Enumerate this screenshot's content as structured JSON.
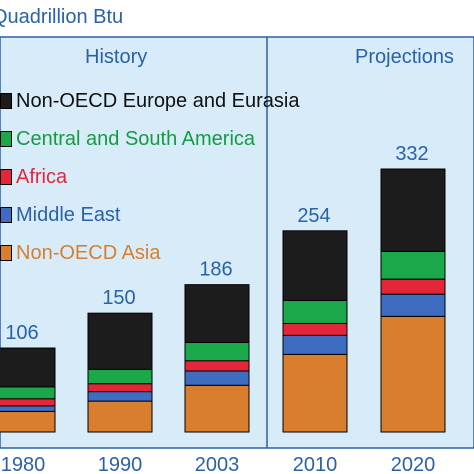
{
  "chart_data": {
    "type": "bar",
    "stacked": true,
    "ylabel": "Quadrillion Btu",
    "categories": [
      "1980",
      "1990",
      "2003",
      "2010",
      "2020"
    ],
    "totals": [
      106,
      150,
      186,
      254,
      332
    ],
    "ylim": [
      0,
      360
    ],
    "regions": [
      {
        "label": "History",
        "categories": [
          "1980",
          "1990",
          "2003"
        ]
      },
      {
        "label": "Projections",
        "categories": [
          "2010",
          "2020"
        ]
      }
    ],
    "series": [
      {
        "name": "Non-OECD Asia",
        "color": "#d97e2e",
        "values": [
          26,
          39,
          59,
          98,
          146
        ]
      },
      {
        "name": "Middle East",
        "color": "#3e6cc1",
        "values": [
          7,
          12,
          18,
          24,
          28
        ]
      },
      {
        "name": "Africa",
        "color": "#e3263a",
        "values": [
          9,
          10,
          13,
          15,
          19
        ]
      },
      {
        "name": "Central and South America",
        "color": "#1aa84a",
        "values": [
          15,
          18,
          23,
          29,
          35
        ]
      },
      {
        "name": "Non-OECD Europe and Eurasia",
        "color": "#1c1c1c",
        "values": [
          49,
          71,
          73,
          88,
          104
        ]
      }
    ],
    "legend_placement": "top-left",
    "grid": false
  }
}
